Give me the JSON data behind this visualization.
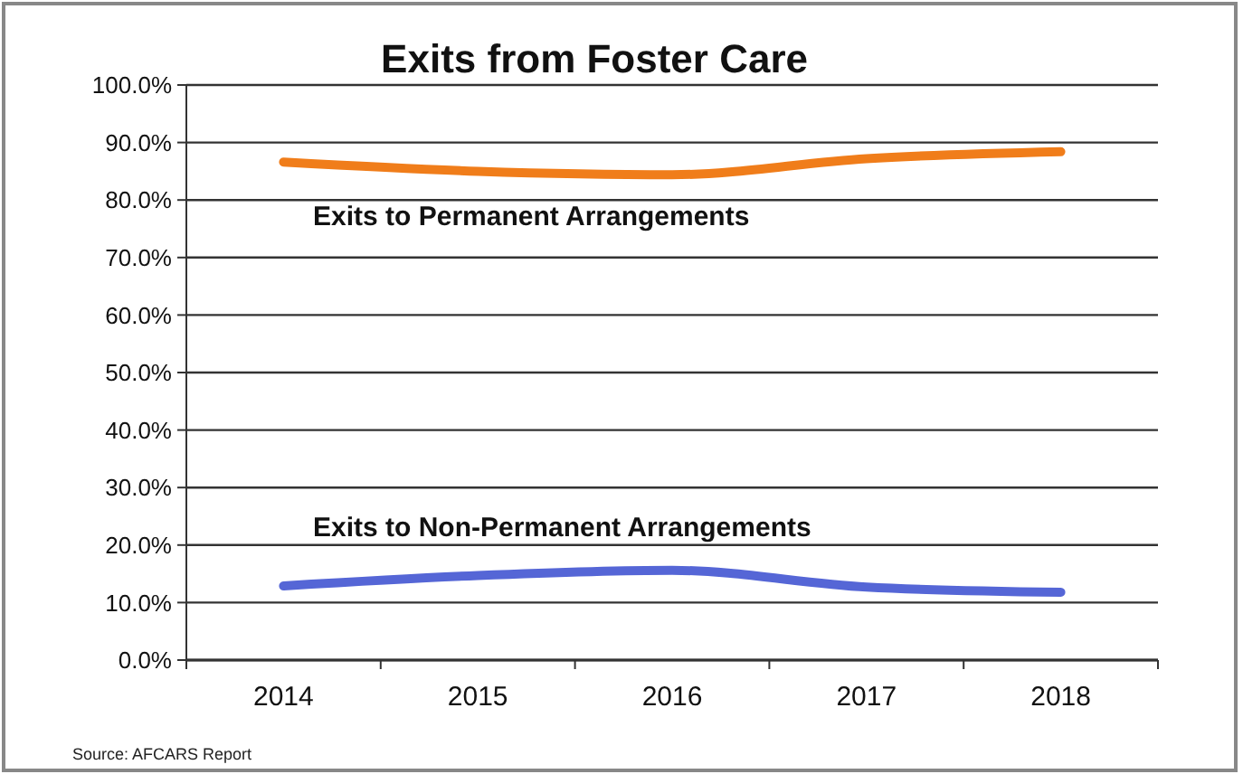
{
  "chart_data": {
    "type": "line",
    "title": "Exits from Foster Care",
    "categories": [
      "2014",
      "2015",
      "2016",
      "2017",
      "2018"
    ],
    "series": [
      {
        "name": "Exits to Permanent Arrangements",
        "color": "#f07d1a",
        "values": [
          86.6,
          85.0,
          84.4,
          87.2,
          88.4
        ]
      },
      {
        "name": "Exits to Non-Permanent Arrangements",
        "color": "#5566d6",
        "values": [
          12.9,
          14.7,
          15.6,
          12.7,
          11.8
        ]
      }
    ],
    "ylim": [
      0,
      100
    ],
    "yticks": [
      {
        "value": 0,
        "label": "0.0%"
      },
      {
        "value": 10,
        "label": "10.0%"
      },
      {
        "value": 20,
        "label": "20.0%"
      },
      {
        "value": 30,
        "label": "30.0%"
      },
      {
        "value": 40,
        "label": "40.0%"
      },
      {
        "value": 50,
        "label": "50.0%"
      },
      {
        "value": 60,
        "label": "60.0%"
      },
      {
        "value": 70,
        "label": "70.0%"
      },
      {
        "value": 80,
        "label": "80.0%"
      },
      {
        "value": 90,
        "label": "90.0%"
      },
      {
        "value": 100,
        "label": "100.0%"
      }
    ],
    "grid": "y",
    "legend": false,
    "marker": "none",
    "line_style": "solid",
    "annotations": [
      "Source: AFCARS Report"
    ]
  }
}
